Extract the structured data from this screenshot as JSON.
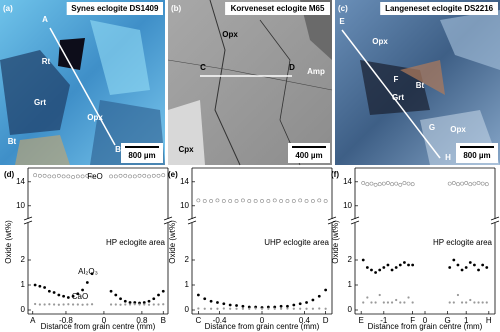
{
  "images": [
    {
      "panel": "(a)",
      "title": "Synes eclogite DS1409",
      "scale": "800 µm",
      "labels": [
        "A",
        "B",
        "Rt",
        "Grt",
        "Opx",
        "Bt"
      ]
    },
    {
      "panel": "(b)",
      "title": "Korveneset eclogite M65",
      "scale": "400 µm",
      "labels": [
        "Opx",
        "C",
        "D",
        "Amp",
        "Cpx"
      ]
    },
    {
      "panel": "(c)",
      "title": "Langeneset eclogite DS2216",
      "scale": "800 µm",
      "labels": [
        "E",
        "Opx",
        "Bt",
        "Grt",
        "G",
        "F",
        "H",
        "Opx"
      ]
    }
  ],
  "chart_data": [
    {
      "type": "scatter",
      "panel_label": "(d)",
      "annotation": "HP eclogite area",
      "x": [
        -1.45,
        -1.35,
        -1.25,
        -1.15,
        -1.05,
        -0.95,
        -0.85,
        -0.75,
        -0.65,
        -0.55,
        -0.45,
        -0.35,
        -0.25,
        0.15,
        0.25,
        0.35,
        0.45,
        0.55,
        0.65,
        0.75,
        0.85,
        0.95,
        1.05,
        1.15,
        1.25
      ],
      "series": [
        {
          "name": "FeO",
          "color": "#888888",
          "marker": "open",
          "values": [
            15.1,
            15.0,
            15.0,
            14.9,
            14.9,
            15.0,
            14.9,
            14.9,
            14.8,
            14.9,
            14.9,
            15.0,
            14.9,
            14.9,
            14.9,
            15.0,
            15.0,
            14.9,
            14.9,
            15.0,
            15.0,
            14.9,
            15.0,
            15.0,
            15.1
          ]
        }
      ],
      "xlim": [
        -1.6,
        1.35
      ],
      "ylim": [
        6.3,
        16.3
      ],
      "yticks": [
        10,
        14
      ]
    },
    {
      "type": "scatter",
      "y_label": "Oxide (wt%)",
      "x_label": "Distance from grain centre (mm)",
      "x": [
        -1.45,
        -1.35,
        -1.25,
        -1.15,
        -1.05,
        -0.95,
        -0.85,
        -0.75,
        -0.65,
        -0.55,
        -0.45,
        -0.35,
        -0.25,
        0.15,
        0.25,
        0.35,
        0.45,
        0.55,
        0.65,
        0.75,
        0.85,
        0.95,
        1.05,
        1.15,
        1.25
      ],
      "series": [
        {
          "name": "Al₂O₃",
          "color": "#000000",
          "marker": "filled",
          "values": [
            1.0,
            0.95,
            0.9,
            0.75,
            0.7,
            0.6,
            0.55,
            0.5,
            0.55,
            0.65,
            0.8,
            1.1,
            1.45,
            0.75,
            0.6,
            0.45,
            0.35,
            0.3,
            0.3,
            0.28,
            0.3,
            0.35,
            0.45,
            0.6,
            0.75
          ]
        },
        {
          "name": "CaO",
          "color": "#999999",
          "marker": "small",
          "values": [
            0.24,
            0.22,
            0.22,
            0.23,
            0.22,
            0.21,
            0.22,
            0.23,
            0.22,
            0.22,
            0.21,
            0.22,
            0.23,
            0.22,
            0.22,
            0.21,
            0.22,
            0.22,
            0.23,
            0.22,
            0.22,
            0.21,
            0.22,
            0.22,
            0.23
          ]
        }
      ],
      "xlim": [
        -1.6,
        1.35
      ],
      "ylim": [
        -0.16,
        3.28
      ],
      "yticks": [
        0,
        1,
        2
      ],
      "xticks": [
        {
          "value": -1.5,
          "label": "A"
        },
        -0.8,
        0,
        0.8,
        {
          "value": 1.25,
          "label": "B"
        }
      ]
    },
    {
      "type": "scatter",
      "panel_label": "(e)",
      "annotation": "UHP eclogite area",
      "x": [
        -0.6,
        -0.54,
        -0.48,
        -0.42,
        -0.36,
        -0.3,
        -0.24,
        -0.18,
        -0.12,
        -0.06,
        0,
        0.06,
        0.12,
        0.18,
        0.24,
        0.3,
        0.36,
        0.42,
        0.48,
        0.54,
        0.6
      ],
      "series": [
        {
          "color": "#888888",
          "marker": "open",
          "values": [
            10.9,
            10.8,
            10.8,
            10.9,
            10.8,
            10.8,
            10.8,
            10.9,
            10.8,
            10.8,
            10.8,
            10.8,
            10.9,
            10.8,
            10.8,
            10.8,
            10.9,
            10.8,
            10.8,
            10.9,
            10.8
          ]
        }
      ],
      "xlim": [
        -0.66,
        0.66
      ],
      "ylim": [
        6.3,
        16.3
      ],
      "yticks": [
        10,
        14
      ]
    },
    {
      "type": "scatter",
      "y_label": "Oxide (wt%)",
      "x_label": "Distance from grain centre (mm)",
      "x": [
        -0.6,
        -0.54,
        -0.48,
        -0.42,
        -0.36,
        -0.3,
        -0.24,
        -0.18,
        -0.12,
        -0.06,
        0,
        0.06,
        0.12,
        0.18,
        0.24,
        0.3,
        0.36,
        0.42,
        0.48,
        0.54,
        0.6
      ],
      "series": [
        {
          "color": "#000000",
          "marker": "filled",
          "values": [
            0.6,
            0.45,
            0.35,
            0.3,
            0.25,
            0.2,
            0.18,
            0.15,
            0.12,
            0.12,
            0.1,
            0.12,
            0.12,
            0.15,
            0.15,
            0.2,
            0.25,
            0.3,
            0.4,
            0.55,
            0.8
          ]
        },
        {
          "color": "#999999",
          "marker": "small",
          "values": [
            0.06,
            0.05,
            0.05,
            0.05,
            0.06,
            0.05,
            0.05,
            0.05,
            0.05,
            0.06,
            0.05,
            0.05,
            0.05,
            0.05,
            0.06,
            0.05,
            0.05,
            0.05,
            0.05,
            0.06,
            0.05
          ]
        }
      ],
      "xlim": [
        -0.66,
        0.66
      ],
      "ylim": [
        -0.16,
        3.28
      ],
      "yticks": [
        0,
        1,
        2
      ],
      "xticks": [
        {
          "value": -0.6,
          "label": "C"
        },
        -0.4,
        0,
        0.4,
        {
          "value": 0.6,
          "label": "D"
        }
      ]
    },
    {
      "type": "scatter",
      "panel_label": "(f)",
      "annotation": "HP eclogite area",
      "x": [
        -1.5,
        -1.4,
        -1.3,
        -1.2,
        -1.1,
        -1.0,
        -0.9,
        -0.8,
        -0.7,
        -0.6,
        -0.5,
        -0.4,
        -0.3,
        0.6,
        0.7,
        0.8,
        0.9,
        1.0,
        1.1,
        1.2,
        1.3,
        1.4,
        1.5
      ],
      "series": [
        {
          "color": "#888888",
          "marker": "open",
          "values": [
            13.8,
            13.6,
            13.7,
            13.5,
            13.6,
            13.7,
            13.8,
            13.6,
            13.7,
            13.5,
            13.8,
            13.7,
            13.6,
            13.7,
            13.8,
            13.6,
            13.7,
            13.8,
            13.6,
            13.7,
            13.8,
            13.7,
            13.6
          ]
        }
      ],
      "xlim": [
        -1.7,
        1.7
      ],
      "ylim": [
        6.3,
        16.3
      ],
      "yticks": [
        10,
        14
      ]
    },
    {
      "type": "scatter",
      "y_label": "Oxide (wt%)",
      "x_label": "Distance from grain centre (mm)",
      "x": [
        -1.5,
        -1.4,
        -1.3,
        -1.2,
        -1.1,
        -1.0,
        -0.9,
        -0.8,
        -0.7,
        -0.6,
        -0.5,
        -0.4,
        -0.3,
        0.6,
        0.7,
        0.8,
        0.9,
        1.0,
        1.1,
        1.2,
        1.3,
        1.4,
        1.5
      ],
      "series": [
        {
          "color": "#000000",
          "marker": "filled",
          "values": [
            2.0,
            1.7,
            1.6,
            1.5,
            1.6,
            1.7,
            1.8,
            1.6,
            1.7,
            1.8,
            1.9,
            1.8,
            1.8,
            1.7,
            2.0,
            1.8,
            1.6,
            1.7,
            1.9,
            1.8,
            1.6,
            1.8,
            1.7
          ]
        },
        {
          "color": "#999999",
          "marker": "small",
          "values": [
            0.3,
            0.5,
            0.3,
            0.3,
            0.6,
            0.3,
            0.3,
            0.3,
            0.4,
            0.3,
            0.3,
            0.5,
            0.3,
            0.3,
            0.3,
            0.6,
            0.3,
            0.3,
            0.4,
            0.3,
            0.3,
            0.3,
            0.3
          ]
        }
      ],
      "xlim": [
        -1.7,
        1.7
      ],
      "ylim": [
        -0.16,
        3.28
      ],
      "yticks": [
        0,
        1,
        2
      ],
      "xticks": [
        {
          "value": -1.55,
          "label": "E"
        },
        -1,
        {
          "value": -0.3,
          "label": "F"
        },
        0,
        {
          "value": 0.55,
          "label": "G"
        },
        1,
        {
          "value": 1.55,
          "label": "H"
        }
      ]
    }
  ]
}
